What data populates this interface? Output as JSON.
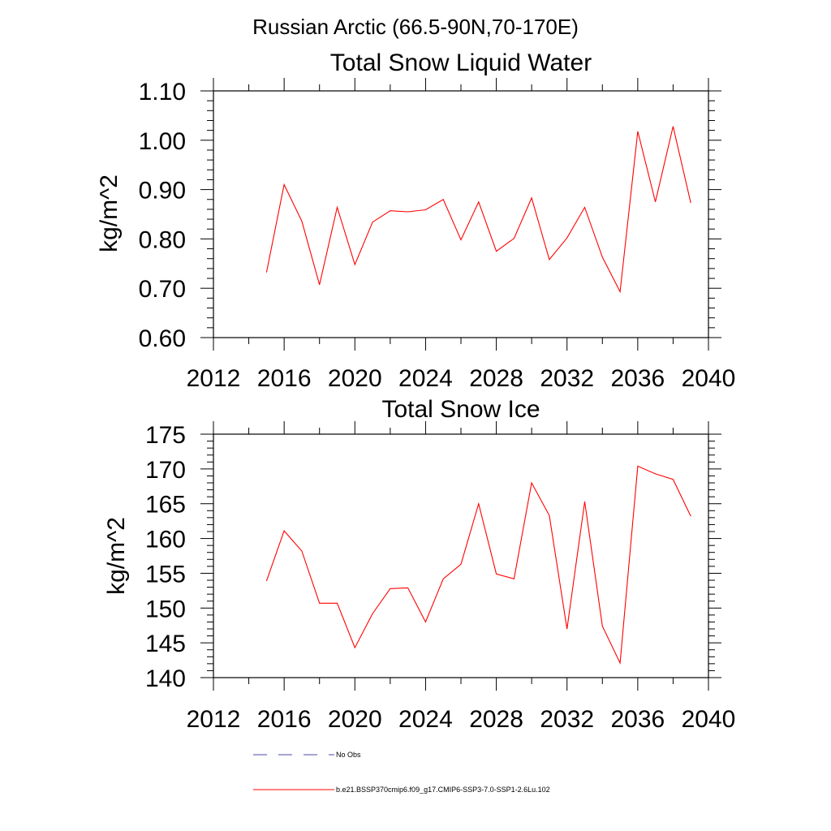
{
  "figure_title": "Russian Arctic (66.5-90N,70-170E)",
  "legend": {
    "obs_label": "No Obs",
    "model_label": "b.e21.BSSP370cmip6.f09_g17.CMIP6-SSP3-7.0-SSP1-2.6Lu.102",
    "obs_color": "#4a4aa8",
    "model_color": "#ff0000"
  },
  "chart_data": [
    {
      "type": "line",
      "title": "Total Snow Liquid Water",
      "xlabel": "",
      "ylabel": "kg/m^2",
      "xlim": [
        2012,
        2040
      ],
      "ylim": [
        0.6,
        1.1
      ],
      "x_ticks": [
        2012,
        2016,
        2020,
        2024,
        2028,
        2032,
        2036,
        2040
      ],
      "x_tick_labels": [
        "2012",
        "2016",
        "2020",
        "2024",
        "2028",
        "2032",
        "2036",
        "2040"
      ],
      "y_ticks": [
        0.6,
        0.7,
        0.8,
        0.9,
        1.0,
        1.1
      ],
      "y_tick_labels": [
        "0.60",
        "0.70",
        "0.80",
        "0.90",
        "1.00",
        "1.10"
      ],
      "grid": false,
      "series": [
        {
          "name": "b.e21.BSSP370cmip6.f09_g17.CMIP6-SSP3-7.0-SSP1-2.6Lu.102",
          "color": "#ff0000",
          "x": [
            2015,
            2016,
            2017,
            2018,
            2019,
            2020,
            2021,
            2022,
            2023,
            2024,
            2025,
            2026,
            2027,
            2028,
            2029,
            2030,
            2031,
            2032,
            2033,
            2034,
            2035,
            2036,
            2037,
            2038,
            2039
          ],
          "y": [
            0.732,
            0.91,
            0.836,
            0.707,
            0.864,
            0.748,
            0.834,
            0.857,
            0.855,
            0.859,
            0.88,
            0.798,
            0.875,
            0.775,
            0.801,
            0.883,
            0.758,
            0.802,
            0.864,
            0.763,
            0.693,
            1.018,
            0.875,
            1.028,
            0.873
          ]
        }
      ]
    },
    {
      "type": "line",
      "title": "Total Snow Ice",
      "xlabel": "",
      "ylabel": "kg/m^2",
      "xlim": [
        2012,
        2040
      ],
      "ylim": [
        140,
        175
      ],
      "x_ticks": [
        2012,
        2016,
        2020,
        2024,
        2028,
        2032,
        2036,
        2040
      ],
      "x_tick_labels": [
        "2012",
        "2016",
        "2020",
        "2024",
        "2028",
        "2032",
        "2036",
        "2040"
      ],
      "y_ticks": [
        140,
        145,
        150,
        155,
        160,
        165,
        170,
        175
      ],
      "y_tick_labels": [
        "140",
        "145",
        "150",
        "155",
        "160",
        "165",
        "170",
        "175"
      ],
      "grid": false,
      "series": [
        {
          "name": "b.e21.BSSP370cmip6.f09_g17.CMIP6-SSP3-7.0-SSP1-2.6Lu.102",
          "color": "#ff0000",
          "x": [
            2015,
            2016,
            2017,
            2018,
            2019,
            2020,
            2021,
            2022,
            2023,
            2024,
            2025,
            2026,
            2027,
            2028,
            2029,
            2030,
            2031,
            2032,
            2033,
            2034,
            2035,
            2036,
            2037,
            2038,
            2039
          ],
          "y": [
            153.9,
            161.1,
            158.2,
            150.7,
            150.7,
            144.3,
            149.2,
            152.8,
            152.9,
            148.0,
            154.2,
            156.3,
            165.0,
            154.9,
            154.2,
            168.0,
            163.3,
            147.0,
            165.3,
            147.4,
            142.1,
            170.4,
            169.3,
            168.5,
            163.2
          ]
        }
      ]
    }
  ]
}
